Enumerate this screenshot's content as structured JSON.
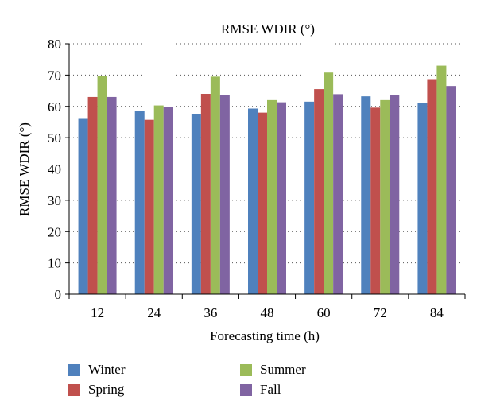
{
  "chart_data": {
    "type": "bar",
    "title": "RMSE WDIR (°)",
    "xlabel": "Forecasting time (h)",
    "ylabel": "RMSE WDIR (°)",
    "categories": [
      "12",
      "24",
      "36",
      "48",
      "60",
      "72",
      "84"
    ],
    "ylim": [
      0,
      80
    ],
    "yticks": [
      0,
      10,
      20,
      30,
      40,
      50,
      60,
      70,
      80
    ],
    "grid": "horizontal dotted",
    "legend_position": "bottom",
    "series": [
      {
        "name": "Winter",
        "color": "#4f81bd",
        "values": [
          56.0,
          58.5,
          57.5,
          59.3,
          61.5,
          63.2,
          61.0
        ]
      },
      {
        "name": "Spring",
        "color": "#c0504d",
        "values": [
          63.0,
          55.7,
          64.0,
          58.0,
          65.5,
          59.6,
          68.7
        ]
      },
      {
        "name": "Summer",
        "color": "#9bbb59",
        "values": [
          69.8,
          60.3,
          69.5,
          62.0,
          70.8,
          62.0,
          73.0
        ]
      },
      {
        "name": "Fall",
        "color": "#8064a2",
        "values": [
          63.0,
          59.8,
          63.5,
          61.3,
          63.9,
          63.6,
          66.5
        ]
      }
    ]
  }
}
